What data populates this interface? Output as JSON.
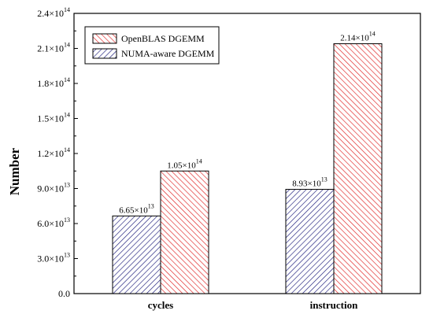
{
  "chart_data": {
    "type": "bar",
    "categories": [
      "cycles",
      "instruction"
    ],
    "series": [
      {
        "name": "NUMA-aware DGEMM",
        "color": "#1a1a7a",
        "hatch": "diagonal-lines-dense",
        "values": [
          66500000000000.0,
          89300000000000.0
        ],
        "labels": [
          {
            "mantissa": "6.65",
            "exponent": "13"
          },
          {
            "mantissa": "8.93",
            "exponent": "13"
          }
        ]
      },
      {
        "name": "OpenBLAS DGEMM",
        "color": "#e02020",
        "hatch": "diagonal-lines-dense",
        "values": [
          105000000000000.0,
          214000000000000.0
        ],
        "labels": [
          {
            "mantissa": "1.05",
            "exponent": "14"
          },
          {
            "mantissa": "2.14",
            "exponent": "14"
          }
        ]
      }
    ],
    "legend_order": [
      1,
      0
    ],
    "legend_position": "top-left",
    "xlabel": "",
    "ylabel": "Number",
    "ylim": [
      0,
      240000000000000.0
    ],
    "yticks": [
      {
        "value": 0,
        "label": "0.0",
        "exponent": ""
      },
      {
        "value": 30000000000000.0,
        "label": "3.0×10",
        "exponent": "13"
      },
      {
        "value": 60000000000000.0,
        "label": "6.0×10",
        "exponent": "13"
      },
      {
        "value": 90000000000000.0,
        "label": "9.0×10",
        "exponent": "13"
      },
      {
        "value": 120000000000000.0,
        "label": "1.2×10",
        "exponent": "14"
      },
      {
        "value": 150000000000000.0,
        "label": "1.5×10",
        "exponent": "14"
      },
      {
        "value": 180000000000000.0,
        "label": "1.8×10",
        "exponent": "14"
      },
      {
        "value": 210000000000000.0,
        "label": "2.1×10",
        "exponent": "14"
      },
      {
        "value": 240000000000000.0,
        "label": "2.4×10",
        "exponent": "14"
      }
    ],
    "grid": false
  }
}
